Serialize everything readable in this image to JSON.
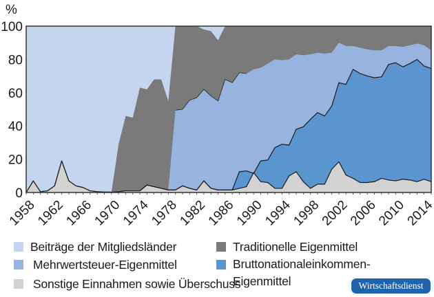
{
  "chart_data": {
    "type": "area",
    "title": "",
    "unit_label": "%",
    "xlabel": "",
    "ylabel": "%",
    "ylim": [
      0,
      100
    ],
    "yticks": [
      0,
      20,
      40,
      60,
      80,
      100
    ],
    "xticks": [
      1958,
      1962,
      1966,
      1970,
      1974,
      1978,
      1982,
      1986,
      1990,
      1994,
      1998,
      2002,
      2006,
      2010,
      2014
    ],
    "grid": false,
    "legend_position": "bottom",
    "x": [
      1958,
      1959,
      1960,
      1961,
      1962,
      1963,
      1964,
      1965,
      1966,
      1967,
      1968,
      1969,
      1970,
      1971,
      1972,
      1973,
      1974,
      1975,
      1976,
      1977,
      1978,
      1979,
      1980,
      1981,
      1982,
      1983,
      1984,
      1985,
      1986,
      1987,
      1988,
      1989,
      1990,
      1991,
      1992,
      1993,
      1994,
      1995,
      1996,
      1997,
      1998,
      1999,
      2000,
      2001,
      2002,
      2003,
      2004,
      2005,
      2006,
      2007,
      2008,
      2009,
      2010,
      2011,
      2012,
      2013,
      2014,
      2015
    ],
    "cumulative_tops": {
      "sonstige": [
        0,
        7,
        0.5,
        1,
        4,
        19,
        7,
        4,
        3,
        1,
        0.5,
        0.3,
        0.2,
        0.5,
        1,
        1,
        1,
        4.5,
        3.5,
        2.5,
        1.5,
        1.5,
        4,
        2.5,
        1.5,
        7,
        2.5,
        1.5,
        1.5,
        1.5,
        2.5,
        3.5,
        12,
        6.5,
        6,
        2.5,
        2.5,
        10,
        12.5,
        6.5,
        2.5,
        5,
        5,
        14,
        18.5,
        10.5,
        8.5,
        6,
        6,
        6.5,
        8.5,
        7.5,
        7,
        8,
        7.5,
        6.5,
        8,
        6.5
      ],
      "bne": [
        0,
        7,
        0.5,
        1,
        4,
        19,
        7,
        4,
        3,
        1,
        0.5,
        0.3,
        0.2,
        0.5,
        1,
        1,
        1,
        4.5,
        3.5,
        2.5,
        1.5,
        1.5,
        4,
        2.5,
        1.5,
        7,
        2.5,
        1.5,
        1.5,
        1.5,
        12.5,
        13,
        11.5,
        19,
        19.5,
        27,
        29,
        28.5,
        38,
        39.5,
        44,
        48,
        46,
        52,
        66,
        65,
        74,
        71.5,
        70,
        69,
        69.5,
        77,
        78,
        75.5,
        77.5,
        80,
        76,
        74.5
      ],
      "mwst": [
        0,
        7,
        0.5,
        1,
        4,
        19,
        7,
        4,
        3,
        1,
        0.5,
        0.3,
        0.2,
        0.5,
        1,
        1,
        1,
        4.5,
        3.5,
        2.5,
        1.5,
        49.5,
        50,
        55.5,
        57,
        62,
        58,
        55,
        68,
        66,
        72,
        71.5,
        74,
        75,
        77.5,
        80,
        79.5,
        80,
        83,
        82.5,
        83,
        84,
        83.5,
        84,
        90,
        88,
        88,
        87,
        86,
        85.5,
        85.5,
        88,
        88,
        87.5,
        88.5,
        89.5,
        88.5,
        85.5
      ],
      "traditionelle": [
        0,
        7,
        0.5,
        1,
        4,
        19,
        7,
        4,
        3,
        1,
        0.5,
        0.3,
        0.2,
        29,
        46,
        45,
        63,
        62,
        68,
        68,
        55,
        100,
        100,
        100,
        100,
        98,
        97,
        91.5,
        100,
        100,
        100,
        100,
        100,
        100,
        100,
        100,
        100,
        100,
        100,
        100,
        100,
        100,
        100,
        100,
        100,
        100,
        100,
        100,
        100,
        100,
        100,
        100,
        100,
        100,
        100,
        100,
        100,
        100
      ],
      "beitraege": [
        100,
        100,
        100,
        100,
        100,
        100,
        100,
        100,
        100,
        100,
        100,
        100,
        100,
        100,
        100,
        100,
        100,
        100,
        100,
        100,
        100,
        100,
        100,
        100,
        100,
        100,
        100,
        100,
        100,
        100,
        100,
        100,
        100,
        100,
        100,
        100,
        100,
        100,
        100,
        100,
        100,
        100,
        100,
        100,
        100,
        100,
        100,
        100,
        100,
        100,
        100,
        100,
        100,
        100,
        100,
        100,
        100,
        100
      ]
    },
    "series": [
      {
        "name": "Beiträge der Mitgliedsländer",
        "key": "beitraege",
        "color": "#c6d5ef"
      },
      {
        "name": "Traditionelle Eigenmittel",
        "key": "traditionelle",
        "color": "#7a7a7a"
      },
      {
        "name": "Mehrwertsteuer-Eigenmittel",
        "key": "mwst",
        "color": "#97b4e0"
      },
      {
        "name": "Bruttonationaleinkommen-Eigenmittel",
        "key": "bne",
        "color": "#5b95cf"
      },
      {
        "name": "Sonstige Einnahmen sowie Überschuss",
        "key": "sonstige",
        "color": "#d2d2d2"
      }
    ]
  },
  "header": {
    "unit": "%"
  },
  "legend": {
    "beitraege": "Beiträge der Mitgliedsländer",
    "mwst": "Mehrwertsteuer-Eigenmittel",
    "sonstige": "Sonstige Einnahmen sowie Überschuss",
    "traditionelle": "Traditionelle Eigenmittel",
    "bne_line1": "Bruttonationaleinkommen-",
    "bne_line2": "Eigenmittel"
  },
  "colors": {
    "beitraege": "#c6d5ef",
    "traditionelle": "#7a7a7a",
    "mwst": "#97b4e0",
    "bne": "#5b95cf",
    "sonstige": "#d2d2d2",
    "badge": "#1f63ad"
  },
  "badge": {
    "label": "Wirtschaftsdienst"
  }
}
